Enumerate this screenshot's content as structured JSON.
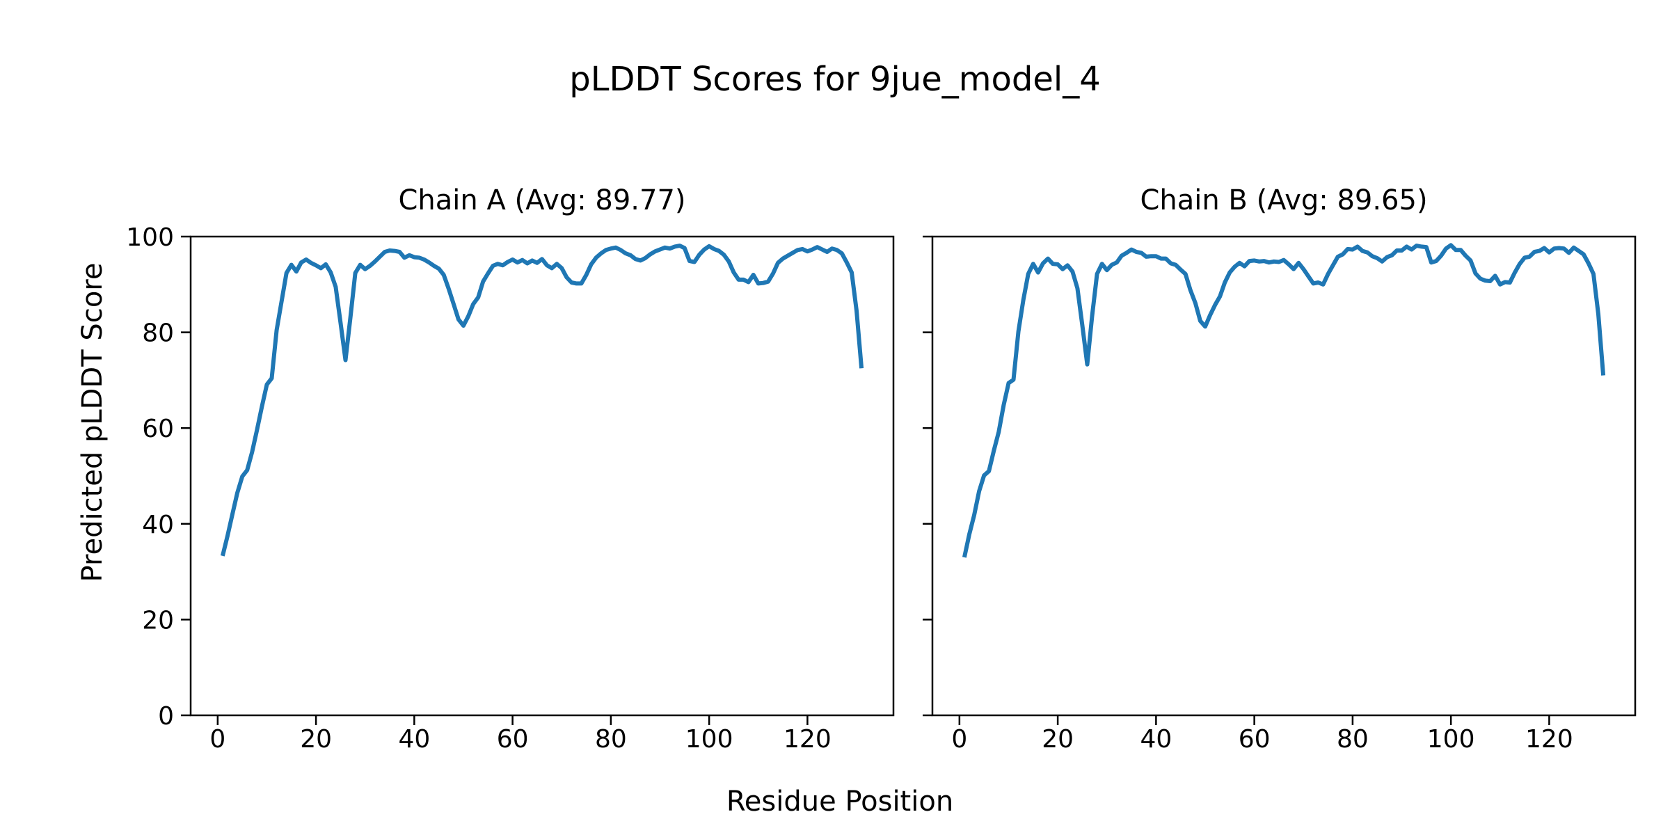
{
  "figure": {
    "suptitle": "pLDDT Scores for 9jue_model_4",
    "xlabel": "Residue Position",
    "ylabel": "Predicted pLDDT Score"
  },
  "chart_data": {
    "type": "line",
    "title": "pLDDT Scores for 9jue_model_4",
    "xlabel": "Residue Position",
    "ylabel": "Predicted pLDDT Score",
    "line_color": "#1f77b4",
    "background_color": "#ffffff",
    "grid": false,
    "legend": "none",
    "xlim": [
      -5.5,
      137.5
    ],
    "ylim": [
      0,
      100
    ],
    "x_ticks": [
      0,
      20,
      40,
      60,
      80,
      100,
      120
    ],
    "y_ticks": [
      0,
      20,
      40,
      60,
      80,
      100
    ],
    "x_start": 1,
    "subplots": [
      {
        "title": "Chain A (Avg: 89.77)",
        "show_y_ticklabels": true,
        "values": [
          33.3,
          37.5,
          42.0,
          46.5,
          49.9,
          51.2,
          55.0,
          59.6,
          64.5,
          69.1,
          70.4,
          80.5,
          86.5,
          92.4,
          94.1,
          92.7,
          94.6,
          95.2,
          94.5,
          94.0,
          93.4,
          94.2,
          92.5,
          89.5,
          82.0,
          74.2,
          83.0,
          92.4,
          94.1,
          93.2,
          93.9,
          94.8,
          95.8,
          96.8,
          97.1,
          97.0,
          96.8,
          95.6,
          96.1,
          95.7,
          95.6,
          95.2,
          94.6,
          93.9,
          93.3,
          92.0,
          89.1,
          85.9,
          82.7,
          81.4,
          83.4,
          85.9,
          87.3,
          90.6,
          92.3,
          93.9,
          94.3,
          94.0,
          94.7,
          95.2,
          94.6,
          95.1,
          94.4,
          95.0,
          94.5,
          95.3,
          94.0,
          93.4,
          94.3,
          93.4,
          91.5,
          90.4,
          90.2,
          90.2,
          92.0,
          94.2,
          95.6,
          96.5,
          97.2,
          97.5,
          97.7,
          97.2,
          96.5,
          96.1,
          95.3,
          95.0,
          95.5,
          96.3,
          96.9,
          97.3,
          97.7,
          97.5,
          97.9,
          98.1,
          97.6,
          94.9,
          94.7,
          96.2,
          97.3,
          98.0,
          97.4,
          97.0,
          96.2,
          94.8,
          92.5,
          91.0,
          91.0,
          90.5,
          92.0,
          90.2,
          90.3,
          90.6,
          92.3,
          94.5,
          95.4,
          96.0,
          96.6,
          97.2,
          97.4,
          96.9,
          97.3,
          97.8,
          97.3,
          96.8,
          97.5,
          97.2,
          96.5,
          94.6,
          92.5,
          84.5,
          72.5
        ]
      },
      {
        "title": "Chain B (Avg: 89.65)",
        "show_y_ticklabels": false,
        "values": [
          33.0,
          37.8,
          41.8,
          46.8,
          50.1,
          51.0,
          55.3,
          59.2,
          64.8,
          69.4,
          70.1,
          80.2,
          86.8,
          92.2,
          94.3,
          92.5,
          94.4,
          95.4,
          94.3,
          94.2,
          93.2,
          94.0,
          92.7,
          89.2,
          81.5,
          73.3,
          83.4,
          92.2,
          94.3,
          93.0,
          94.1,
          94.6,
          96.0,
          96.6,
          97.3,
          96.8,
          96.6,
          95.8,
          95.9,
          95.9,
          95.4,
          95.4,
          94.4,
          94.1,
          93.1,
          92.2,
          88.8,
          86.1,
          82.4,
          81.2,
          83.6,
          85.7,
          87.5,
          90.4,
          92.5,
          93.7,
          94.5,
          93.8,
          94.9,
          95.0,
          94.8,
          94.9,
          94.6,
          94.8,
          94.7,
          95.1,
          94.2,
          93.2,
          94.5,
          93.2,
          91.7,
          90.2,
          90.4,
          90.0,
          92.2,
          94.0,
          95.8,
          96.3,
          97.4,
          97.3,
          97.9,
          97.0,
          96.7,
          95.9,
          95.5,
          94.8,
          95.7,
          96.1,
          97.1,
          97.1,
          97.9,
          97.3,
          98.1,
          97.9,
          97.8,
          94.6,
          94.9,
          96.0,
          97.5,
          98.2,
          97.2,
          97.2,
          96.0,
          95.0,
          92.3,
          91.2,
          90.8,
          90.7,
          91.8,
          90.0,
          90.5,
          90.4,
          92.5,
          94.3,
          95.6,
          95.8,
          96.8,
          97.0,
          97.6,
          96.7,
          97.5,
          97.6,
          97.5,
          96.6,
          97.7,
          97.0,
          96.3,
          94.4,
          92.2,
          83.8,
          71.0
        ]
      }
    ]
  }
}
